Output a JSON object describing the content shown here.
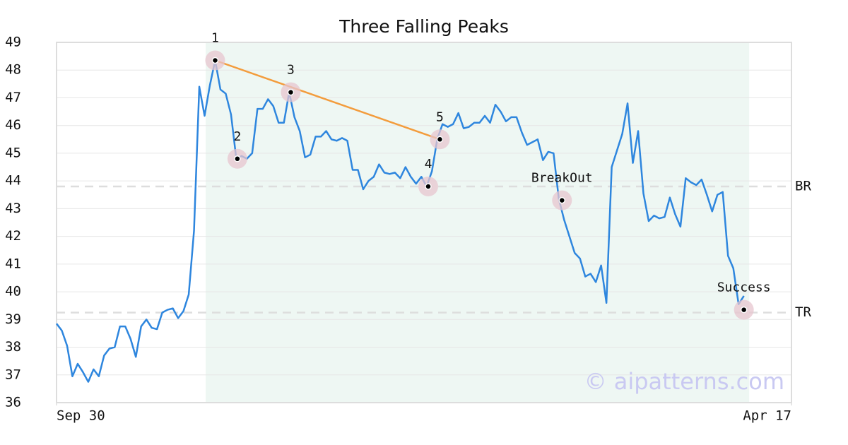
{
  "chart_data": {
    "type": "line",
    "title": "Three Falling Peaks",
    "x": [
      0,
      1,
      2,
      3,
      4,
      5,
      6,
      7,
      8,
      9,
      10,
      11,
      12,
      13,
      14,
      15,
      16,
      17,
      18,
      19,
      20,
      21,
      22,
      23,
      24,
      25,
      26,
      27,
      28,
      29,
      30,
      31,
      32,
      33,
      34,
      35,
      36,
      37,
      38,
      39,
      40,
      41,
      42,
      43,
      44,
      45,
      46,
      47,
      48,
      49,
      50,
      51,
      52,
      53,
      54,
      55,
      56,
      57,
      58,
      59,
      60,
      61,
      62,
      63,
      64,
      65,
      66,
      67,
      68,
      69,
      70,
      71,
      72,
      73,
      74,
      75,
      76,
      77,
      78,
      79,
      80,
      81,
      82,
      83,
      84,
      85,
      86,
      87,
      88,
      89,
      90,
      91,
      92,
      93,
      94,
      95,
      96,
      97,
      98,
      99,
      100,
      101,
      102,
      103,
      104,
      105,
      106,
      107,
      108,
      109,
      110,
      111,
      112,
      113,
      114,
      115,
      116,
      117,
      118,
      119,
      120,
      121,
      122,
      123,
      124,
      125,
      126,
      127,
      128,
      129,
      130
    ],
    "series": [
      {
        "color": "#2e86de",
        "values": [
          38.85,
          38.6,
          38.05,
          36.95,
          37.4,
          37.1,
          36.75,
          37.2,
          36.95,
          37.7,
          37.95,
          38.0,
          38.75,
          38.75,
          38.3,
          37.65,
          38.75,
          39.0,
          38.7,
          38.65,
          39.25,
          39.35,
          39.4,
          39.05,
          39.3,
          39.9,
          42.2,
          47.4,
          46.35,
          47.45,
          48.35,
          47.3,
          47.15,
          46.4,
          44.8,
          44.9,
          44.8,
          45.0,
          46.6,
          46.6,
          46.95,
          46.7,
          46.1,
          46.1,
          47.2,
          46.3,
          45.8,
          44.85,
          44.95,
          45.6,
          45.6,
          45.8,
          45.5,
          45.45,
          45.55,
          45.45,
          44.4,
          44.4,
          43.7,
          44.0,
          44.15,
          44.6,
          44.3,
          44.25,
          44.3,
          44.1,
          44.5,
          44.15,
          43.9,
          44.15,
          43.8,
          44.35,
          45.5,
          46.05,
          45.95,
          46.05,
          46.45,
          45.9,
          45.95,
          46.1,
          46.1,
          46.35,
          46.1,
          46.75,
          46.5,
          46.15,
          46.3,
          46.3,
          45.75,
          45.3,
          45.4,
          45.5,
          44.75,
          45.05,
          45.0,
          43.35,
          42.6,
          42.0,
          41.4,
          41.2,
          40.55,
          40.65,
          40.35,
          40.95,
          39.6,
          44.5,
          45.1,
          45.7,
          46.8,
          44.65,
          45.8,
          43.55,
          42.55,
          42.75,
          42.65,
          42.7,
          43.4,
          42.8,
          42.35,
          44.1,
          43.95,
          43.85,
          44.05,
          43.5,
          42.9,
          43.5,
          43.6,
          41.3,
          40.85,
          39.55,
          39.85
        ]
      }
    ],
    "xlim": [
      0,
      139
    ],
    "xticks": [
      {
        "value": 0,
        "label": "Sep 30"
      },
      {
        "value": 139,
        "label": "Apr 17"
      }
    ],
    "ylim": [
      36,
      49
    ],
    "yticks": [
      36,
      37,
      38,
      39,
      40,
      41,
      42,
      43,
      44,
      45,
      46,
      47,
      48,
      49
    ],
    "grid": true,
    "shaded_region": {
      "x": [
        28.2,
        131
      ],
      "color": "#eef7f3"
    },
    "trendline": {
      "x": [
        30,
        72.5
      ],
      "y": [
        48.35,
        45.5
      ],
      "color": "#f39c3c"
    },
    "reference_lines": [
      {
        "label": "BR",
        "value": 43.8
      },
      {
        "label": "TR",
        "value": 39.25
      }
    ],
    "annotations": [
      {
        "label": "1",
        "x": 30,
        "y": 48.35
      },
      {
        "label": "2",
        "x": 34.2,
        "y": 44.8
      },
      {
        "label": "3",
        "x": 44.3,
        "y": 47.2
      },
      {
        "label": "4",
        "x": 70.3,
        "y": 43.8
      },
      {
        "label": "5",
        "x": 72.5,
        "y": 45.5
      },
      {
        "label": "BreakOut",
        "x": 95.6,
        "y": 43.3
      },
      {
        "label": "Success",
        "x": 130,
        "y": 39.35
      }
    ],
    "watermark": "© aipatterns.com"
  }
}
